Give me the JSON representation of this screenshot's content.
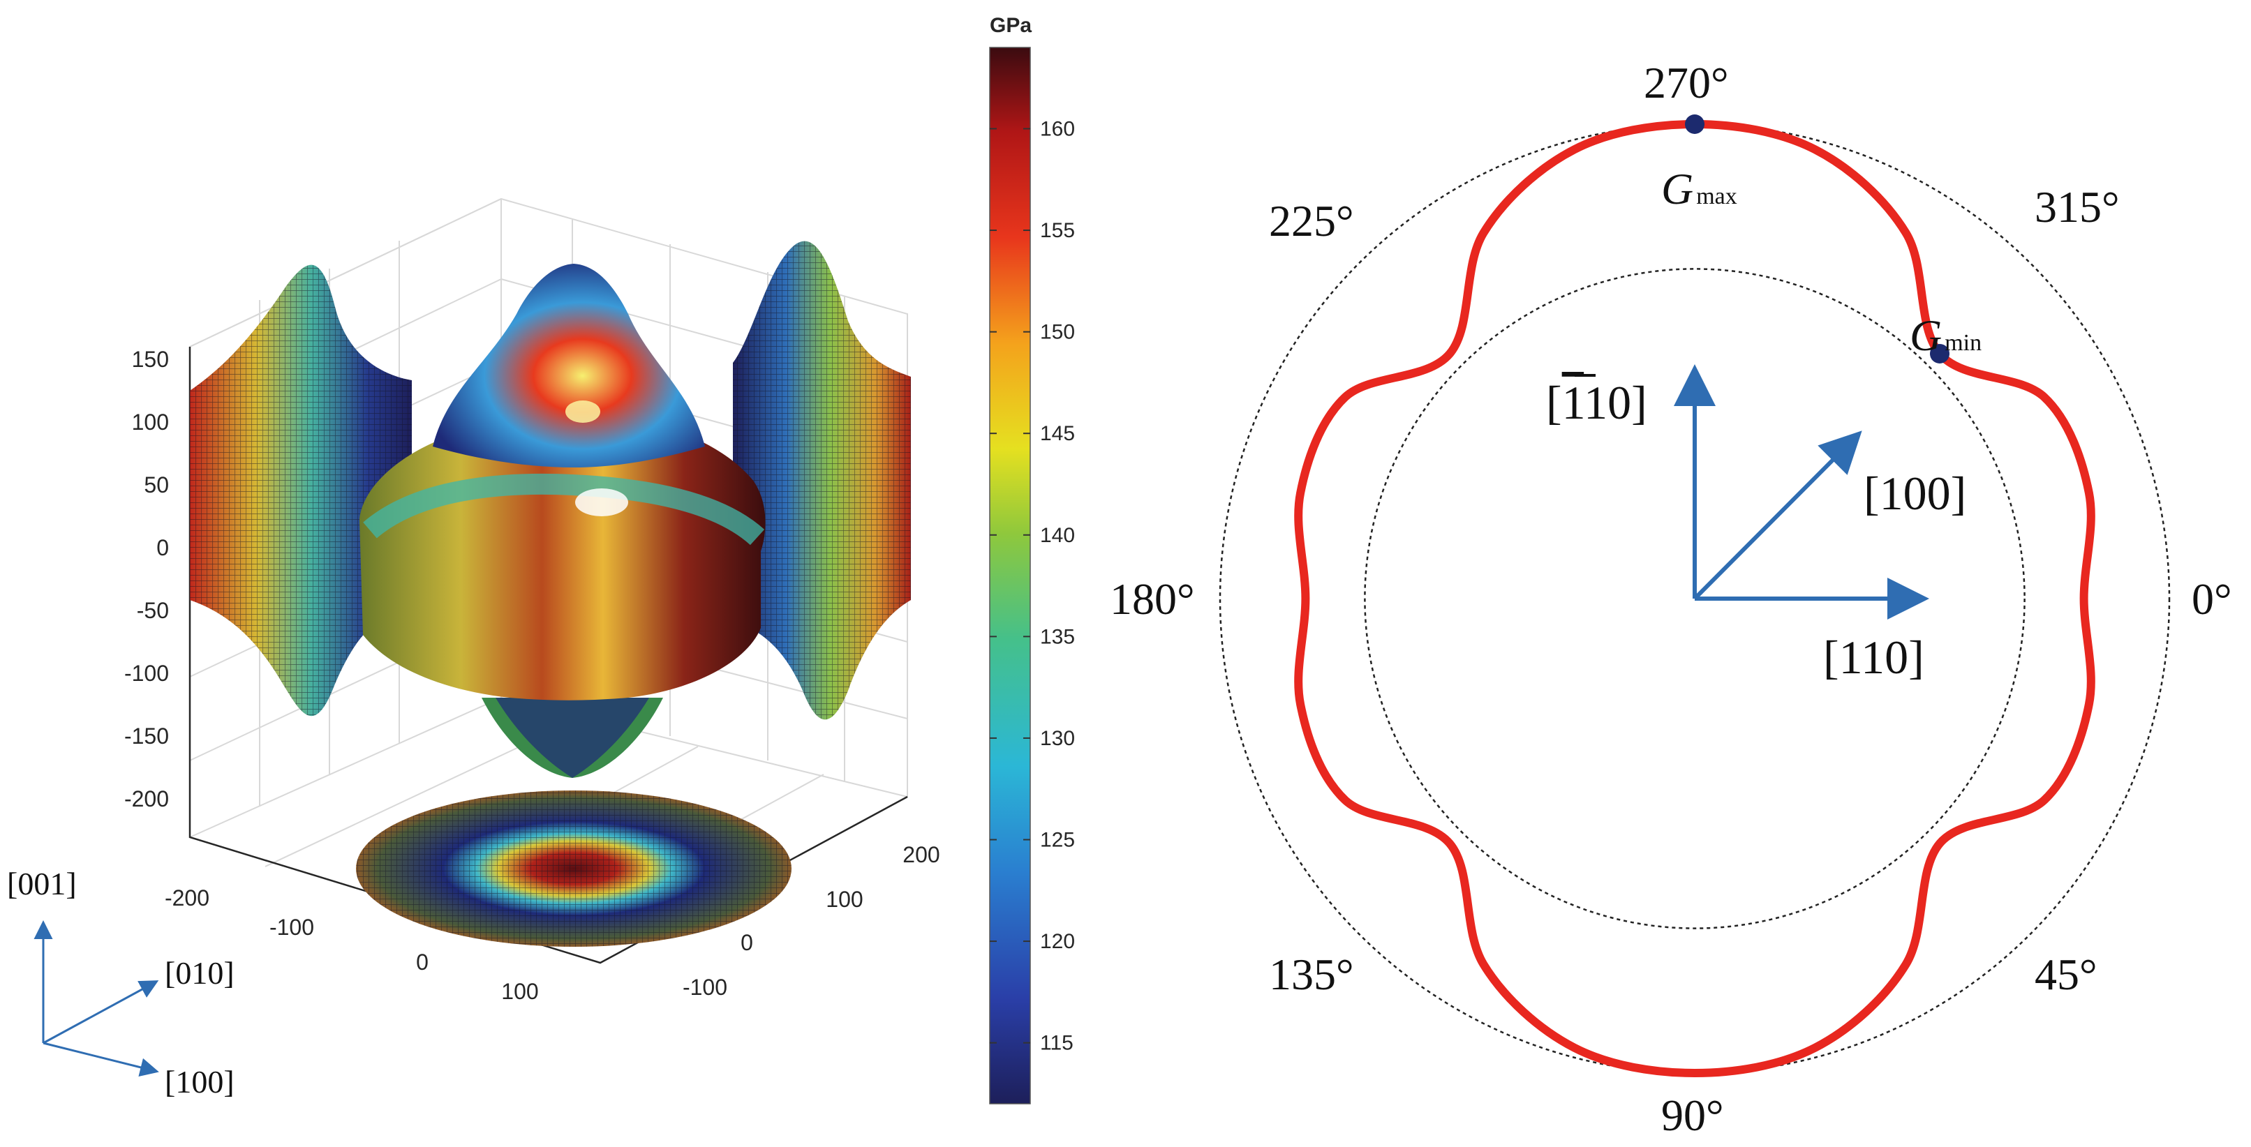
{
  "chart_data": [
    {
      "type": "surface3d",
      "colorbar": {
        "unit": "GPa",
        "ticks": [
          115,
          120,
          125,
          130,
          135,
          140,
          145,
          150,
          155,
          160
        ],
        "range": [
          112,
          164
        ],
        "colormap": [
          "#1d1f5a",
          "#2a3fa8",
          "#2a7fd0",
          "#2bb7d6",
          "#45c08a",
          "#8fc83c",
          "#e5e020",
          "#f4a21c",
          "#e8361c",
          "#b01616",
          "#3b0b10"
        ]
      },
      "z_ticks": [
        "150",
        "100",
        "50",
        "0",
        "-50",
        "-100",
        "-150",
        "-200"
      ],
      "x_ticks": [
        "-200",
        "-100",
        "0",
        "100"
      ],
      "y_ticks": [
        "-100",
        "0",
        "100",
        "200"
      ],
      "axes_labels": [
        "[001]",
        "[010]",
        "[100]"
      ],
      "grid": true
    },
    {
      "type": "polar",
      "series": [
        {
          "color": "#e8271f",
          "theta_deg": [
            0,
            15,
            30,
            45,
            60,
            75,
            90,
            105,
            120,
            135,
            150,
            165,
            180,
            195,
            210,
            225,
            240,
            255,
            270,
            285,
            300,
            315,
            330,
            345,
            360
          ],
          "r": [
            0.82,
            0.86,
            0.85,
            0.73,
            0.89,
            0.98,
            1.0,
            0.98,
            0.89,
            0.73,
            0.85,
            0.86,
            0.82,
            0.86,
            0.85,
            0.73,
            0.89,
            0.98,
            1.0,
            0.98,
            0.89,
            0.73,
            0.85,
            0.86,
            0.82
          ]
        }
      ],
      "reference_circles": [
        0.695,
        1.0
      ],
      "angle_labels": [
        "0°",
        "45°",
        "90°",
        "135°",
        "180°",
        "225°",
        "270°",
        "315°"
      ],
      "markers": [
        {
          "label": "G",
          "sub": "max",
          "theta_deg": 270
        },
        {
          "label": "G",
          "sub": "min",
          "theta_deg": 315
        }
      ],
      "direction_labels": {
        "up": "[",
        "up_bar": "1",
        "up_tail": "10]",
        "diag": "[100]",
        "right": "[110]"
      }
    }
  ]
}
